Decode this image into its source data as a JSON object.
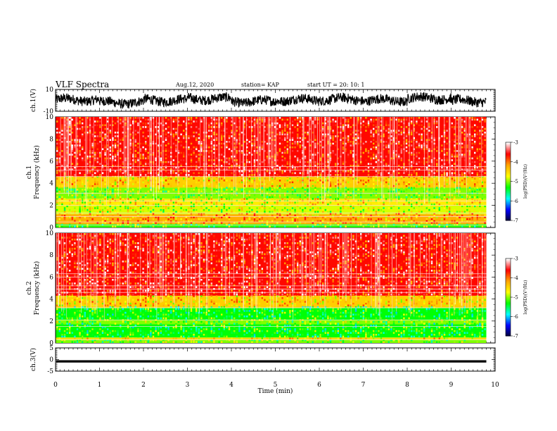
{
  "header": {
    "title": "VLF Spectra",
    "date": "Aug.12, 2020",
    "station": "station= KAP",
    "start": "start  UT =   20: 10: 1"
  },
  "chart_data": [
    {
      "type": "line",
      "name": "ch1-waveform",
      "ylabel": "ch.1(V)",
      "ylim": [
        -10,
        10
      ],
      "yticks": [
        "10",
        "-10"
      ],
      "xlim": [
        0,
        10
      ],
      "data_end_min": 9.8,
      "trace": {
        "baseline_v": 0,
        "amplitude_v": [
          -8,
          8
        ],
        "segments": [
          {
            "x0": 0.0,
            "x1": 1.0,
            "center_v": 0.5
          },
          {
            "x0": 1.0,
            "x1": 2.0,
            "center_v": -2.0
          },
          {
            "x0": 2.0,
            "x1": 3.0,
            "center_v": 0.0
          },
          {
            "x0": 3.0,
            "x1": 4.0,
            "center_v": 1.5
          },
          {
            "x0": 4.0,
            "x1": 5.0,
            "center_v": -1.0
          },
          {
            "x0": 5.0,
            "x1": 6.0,
            "center_v": 0.5
          },
          {
            "x0": 6.0,
            "x1": 7.0,
            "center_v": 1.0
          },
          {
            "x0": 7.0,
            "x1": 8.0,
            "center_v": 0.0
          },
          {
            "x0": 8.0,
            "x1": 9.0,
            "center_v": 2.0
          },
          {
            "x0": 9.0,
            "x1": 9.8,
            "center_v": -0.5
          }
        ]
      },
      "color": "#000000"
    },
    {
      "type": "heatmap",
      "name": "ch1-spectrogram",
      "ylabel": "ch.1\nFrequency  (kHz)",
      "ylim": [
        0,
        10
      ],
      "yticks": [
        "0",
        "2",
        "4",
        "6",
        "8",
        "10"
      ],
      "xlim": [
        0,
        10
      ],
      "data_end_min": 9.8,
      "bands": [
        {
          "f0": 0.0,
          "f1": 0.3,
          "level": -5.2
        },
        {
          "f0": 0.3,
          "f1": 1.2,
          "level": -4.2
        },
        {
          "f0": 1.2,
          "f1": 2.0,
          "level": -4.8
        },
        {
          "f0": 2.0,
          "f1": 2.6,
          "level": -4.6
        },
        {
          "f0": 2.6,
          "f1": 3.6,
          "level": -5.0
        },
        {
          "f0": 3.6,
          "f1": 4.6,
          "level": -4.4
        },
        {
          "f0": 4.6,
          "f1": 10.0,
          "level": -3.6
        }
      ],
      "lines_khz": [
        0.2,
        0.5,
        1.0,
        1.3,
        2.0,
        2.4,
        3.1,
        4.6,
        5.2,
        5.5
      ],
      "colorbar": {
        "label": "log(PSD)(V²/Hz)",
        "range": [
          -7,
          -3
        ],
        "ticks": [
          "-3",
          "-4",
          "-5",
          "-6",
          "-7"
        ],
        "colors": [
          "#ffffff",
          "#ff0000",
          "#ffa500",
          "#ffff00",
          "#00ff00",
          "#00ffff",
          "#0000ff",
          "#000033"
        ]
      }
    },
    {
      "type": "heatmap",
      "name": "ch2-spectrogram",
      "ylabel": "ch.2\nFrequency  (kHz)",
      "ylim": [
        0,
        10
      ],
      "yticks": [
        "0",
        "2",
        "4",
        "6",
        "8",
        "10"
      ],
      "xlim": [
        0,
        10
      ],
      "data_end_min": 9.8,
      "bands": [
        {
          "f0": 0.0,
          "f1": 0.3,
          "level": -5.0
        },
        {
          "f0": 0.3,
          "f1": 0.5,
          "level": -4.5
        },
        {
          "f0": 0.5,
          "f1": 1.7,
          "level": -5.3
        },
        {
          "f0": 1.7,
          "f1": 2.1,
          "level": -5.0
        },
        {
          "f0": 2.1,
          "f1": 3.2,
          "level": -5.3
        },
        {
          "f0": 3.2,
          "f1": 4.3,
          "level": -4.4
        },
        {
          "f0": 4.3,
          "f1": 10.0,
          "level": -3.6
        }
      ],
      "lines_khz": [
        0.3,
        1.5,
        2.1,
        3.2,
        4.6,
        4.9,
        5.2,
        6.0,
        6.3
      ],
      "colorbar": {
        "label": "log(PSD)(V²/Hz)",
        "range": [
          -7,
          -3
        ],
        "ticks": [
          "-3",
          "-4",
          "-5",
          "-6",
          "-7"
        ],
        "colors": [
          "#ffffff",
          "#ff0000",
          "#ffa500",
          "#ffff00",
          "#00ff00",
          "#00ffff",
          "#0000ff",
          "#000033"
        ]
      }
    },
    {
      "type": "line",
      "name": "ch3-waveform",
      "ylabel": "ch.3(V)",
      "ylim": [
        -5,
        5
      ],
      "yticks": [
        "5",
        "0",
        "-5"
      ],
      "xlim": [
        0,
        10
      ],
      "data_end_min": 9.8,
      "trace": {
        "center_v": -0.8,
        "half_width_v": 0.5
      },
      "color": "#000000"
    }
  ],
  "xaxis": {
    "label": "Time  (min)",
    "ticks": [
      "0",
      "1",
      "2",
      "3",
      "4",
      "5",
      "6",
      "7",
      "8",
      "9",
      "10"
    ],
    "range": [
      0,
      10
    ]
  }
}
